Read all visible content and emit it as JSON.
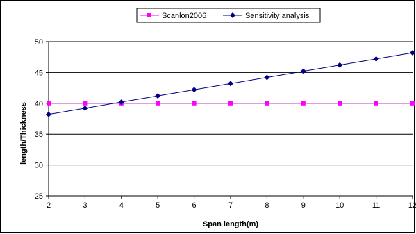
{
  "chart_data": {
    "type": "line",
    "title": "",
    "xlabel": "Span length(m)",
    "ylabel": "length/Thickness",
    "x": [
      2,
      3,
      4,
      5,
      6,
      7,
      8,
      9,
      10,
      11,
      12
    ],
    "xlim": [
      2,
      12
    ],
    "ylim": [
      25,
      50
    ],
    "yticks": [
      25,
      30,
      35,
      40,
      45,
      50
    ],
    "grid": true,
    "legend_position": "top",
    "series": [
      {
        "name": "Scanlon2006",
        "color": "#FF00FF",
        "marker": "square",
        "values": [
          40,
          40,
          40,
          40,
          40,
          40,
          40,
          40,
          40,
          40,
          40
        ]
      },
      {
        "name": "Sensitivity analysis",
        "color": "#000080",
        "marker": "diamond",
        "values": [
          38.2,
          39.2,
          40.2,
          41.2,
          42.2,
          43.2,
          44.2,
          45.2,
          46.2,
          47.2,
          48.2
        ]
      }
    ]
  }
}
